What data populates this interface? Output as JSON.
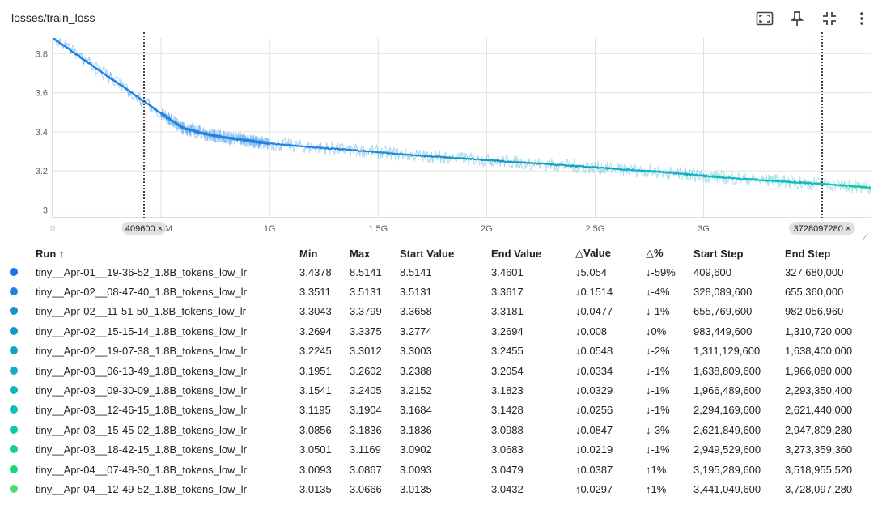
{
  "header": {
    "title": "losses/train_loss",
    "icons": [
      "fit-screen-icon",
      "pin-icon",
      "collapse-icon",
      "more-vert-icon"
    ]
  },
  "chart_data": {
    "type": "line",
    "title": "losses/train_loss",
    "xlabel": "",
    "ylabel": "",
    "x_ticks": [
      {
        "value": 0,
        "label": "0"
      },
      {
        "value": 500000000,
        "label": "500M"
      },
      {
        "value": 1000000000,
        "label": "1G"
      },
      {
        "value": 1500000000,
        "label": "1.5G"
      },
      {
        "value": 2000000000,
        "label": "2G"
      },
      {
        "value": 2500000000,
        "label": "2.5G"
      },
      {
        "value": 3000000000,
        "label": "3G"
      },
      {
        "value": 3500000000,
        "label": "3.5G"
      }
    ],
    "y_ticks": [
      {
        "value": 3.0,
        "label": "3"
      },
      {
        "value": 3.2,
        "label": "3.2"
      },
      {
        "value": 3.4,
        "label": "3.4"
      },
      {
        "value": 3.6,
        "label": "3.6"
      },
      {
        "value": 3.8,
        "label": "3.8"
      }
    ],
    "xlim": [
      0,
      3770000000
    ],
    "ylim": [
      2.96,
      3.88
    ],
    "grid": true,
    "range_markers": [
      {
        "value": 409600,
        "label": "409600 ×"
      },
      {
        "value": 3728097280,
        "label": "3728097280 ×"
      }
    ],
    "smoothed_series": [
      {
        "name": "tiny__Apr-01__19-36-52_1.8B_tokens_low_lr",
        "color": "#1a73e8",
        "x": [
          409600,
          500000000,
          600000000,
          700000000,
          800000000,
          900000000,
          1000000000
        ],
        "y": [
          3.88,
          3.495,
          3.42,
          3.39,
          3.37,
          3.355,
          3.34
        ]
      },
      {
        "name": "tiny__Apr-02__08-47-40_1.8B_tokens_low_lr",
        "color": "#1c83e0",
        "x": [
          409600,
          500000000,
          600000000,
          700000000,
          800000000,
          900000000,
          1000000000,
          1200000000,
          1400000000
        ],
        "y": [
          3.88,
          3.495,
          3.42,
          3.39,
          3.37,
          3.355,
          3.34,
          3.32,
          3.305
        ]
      },
      {
        "name": "tiny__Apr-02__11-51-50_1.8B_tokens_low_lr",
        "color": "#1890cf",
        "x": [
          1400000000,
          1600000000,
          1800000000
        ],
        "y": [
          3.305,
          3.285,
          3.27
        ]
      },
      {
        "name": "tiny__Apr-02__15-15-14_1.8B_tokens_low_lr",
        "color": "#1597c2",
        "x": [
          1800000000,
          2000000000,
          2200000000
        ],
        "y": [
          3.27,
          3.255,
          3.24
        ]
      },
      {
        "name": "tiny__Apr-02__19-07-38_1.8B_tokens_low_lr",
        "color": "#14a2c4",
        "x": [
          2200000000,
          2400000000,
          2600000000
        ],
        "y": [
          3.24,
          3.225,
          3.21
        ]
      },
      {
        "name": "tiny__Apr-03__06-13-49_1.8B_tokens_low_lr",
        "color": "#11abc8",
        "x": [
          2600000000,
          2800000000,
          2950000000
        ],
        "y": [
          3.21,
          3.195,
          3.18
        ]
      },
      {
        "name": "tiny__Apr-03__09-30-09_1.8B_tokens_low_lr",
        "color": "#10b5c3",
        "x": [
          2950000000,
          3100000000,
          3300000000
        ],
        "y": [
          3.18,
          3.165,
          3.15
        ]
      },
      {
        "name": "tiny__Apr-03__12-46-15_1.8B_tokens_low_lr",
        "color": "#0fbdb8",
        "x": [
          3300000000,
          3450000000,
          3650000000
        ],
        "y": [
          3.15,
          3.14,
          3.125
        ]
      },
      {
        "name": "tiny__Apr-03__15-45-02_1.8B_tokens_low_lr",
        "color": "#0ec7a8",
        "x": [
          3650000000,
          3800000000,
          3950000000
        ],
        "y": [
          3.125,
          3.11,
          3.1
        ]
      },
      {
        "name": "tiny__Apr-03__18-42-15_1.8B_tokens_low_lr",
        "color": "#12cf92",
        "x": [
          3950000000,
          4150000000
        ],
        "y": [
          3.1,
          3.085
        ]
      },
      {
        "name": "tiny__Apr-04__07-48-30_1.8B_tokens_low_lr",
        "color": "#16d67c",
        "x": [
          4150000000,
          4350000000
        ],
        "y": [
          3.085,
          3.08
        ]
      },
      {
        "name": "tiny__Apr-04__12-49-52_1.8B_tokens_low_lr",
        "color": "#4fdc6e",
        "x": [
          4350000000,
          4560000000
        ],
        "y": [
          3.08,
          3.07
        ]
      }
    ]
  },
  "table": {
    "columns": [
      "Run ↑",
      "Min",
      "Max",
      "Start Value",
      "End Value",
      "△Value",
      "△%",
      "Start Step",
      "End Step"
    ],
    "rows": [
      {
        "color": "#1a73e8",
        "run": "tiny__Apr-01__19-36-52_1.8B_tokens_low_lr",
        "min": "3.4378",
        "max": "8.5141",
        "start_value": "8.5141",
        "end_value": "3.4601",
        "delta_value": "↓5.054",
        "delta_pct": "↓-59%",
        "start_step": "409,600",
        "end_step": "327,680,000"
      },
      {
        "color": "#1c83e0",
        "run": "tiny__Apr-02__08-47-40_1.8B_tokens_low_lr",
        "min": "3.3511",
        "max": "3.5131",
        "start_value": "3.5131",
        "end_value": "3.3617",
        "delta_value": "↓0.1514",
        "delta_pct": "↓-4%",
        "start_step": "328,089,600",
        "end_step": "655,360,000"
      },
      {
        "color": "#1890cf",
        "run": "tiny__Apr-02__11-51-50_1.8B_tokens_low_lr",
        "min": "3.3043",
        "max": "3.3799",
        "start_value": "3.3658",
        "end_value": "3.3181",
        "delta_value": "↓0.0477",
        "delta_pct": "↓-1%",
        "start_step": "655,769,600",
        "end_step": "982,056,960"
      },
      {
        "color": "#1597c2",
        "run": "tiny__Apr-02__15-15-14_1.8B_tokens_low_lr",
        "min": "3.2694",
        "max": "3.3375",
        "start_value": "3.2774",
        "end_value": "3.2694",
        "delta_value": "↓0.008",
        "delta_pct": "↓0%",
        "start_step": "983,449,600",
        "end_step": "1,310,720,000"
      },
      {
        "color": "#14a2c4",
        "run": "tiny__Apr-02__19-07-38_1.8B_tokens_low_lr",
        "min": "3.2245",
        "max": "3.3012",
        "start_value": "3.3003",
        "end_value": "3.2455",
        "delta_value": "↓0.0548",
        "delta_pct": "↓-2%",
        "start_step": "1,311,129,600",
        "end_step": "1,638,400,000"
      },
      {
        "color": "#11abc8",
        "run": "tiny__Apr-03__06-13-49_1.8B_tokens_low_lr",
        "min": "3.1951",
        "max": "3.2602",
        "start_value": "3.2388",
        "end_value": "3.2054",
        "delta_value": "↓0.0334",
        "delta_pct": "↓-1%",
        "start_step": "1,638,809,600",
        "end_step": "1,966,080,000"
      },
      {
        "color": "#10b5c3",
        "run": "tiny__Apr-03__09-30-09_1.8B_tokens_low_lr",
        "min": "3.1541",
        "max": "3.2405",
        "start_value": "3.2152",
        "end_value": "3.1823",
        "delta_value": "↓0.0329",
        "delta_pct": "↓-1%",
        "start_step": "1,966,489,600",
        "end_step": "2,293,350,400"
      },
      {
        "color": "#0fbdb8",
        "run": "tiny__Apr-03__12-46-15_1.8B_tokens_low_lr",
        "min": "3.1195",
        "max": "3.1904",
        "start_value": "3.1684",
        "end_value": "3.1428",
        "delta_value": "↓0.0256",
        "delta_pct": "↓-1%",
        "start_step": "2,294,169,600",
        "end_step": "2,621,440,000"
      },
      {
        "color": "#0ec7a8",
        "run": "tiny__Apr-03__15-45-02_1.8B_tokens_low_lr",
        "min": "3.0856",
        "max": "3.1836",
        "start_value": "3.1836",
        "end_value": "3.0988",
        "delta_value": "↓0.0847",
        "delta_pct": "↓-3%",
        "start_step": "2,621,849,600",
        "end_step": "2,947,809,280"
      },
      {
        "color": "#12cf92",
        "run": "tiny__Apr-03__18-42-15_1.8B_tokens_low_lr",
        "min": "3.0501",
        "max": "3.1169",
        "start_value": "3.0902",
        "end_value": "3.0683",
        "delta_value": "↓0.0219",
        "delta_pct": "↓-1%",
        "start_step": "2,949,529,600",
        "end_step": "3,273,359,360"
      },
      {
        "color": "#16d67c",
        "run": "tiny__Apr-04__07-48-30_1.8B_tokens_low_lr",
        "min": "3.0093",
        "max": "3.0867",
        "start_value": "3.0093",
        "end_value": "3.0479",
        "delta_value": "↑0.0387",
        "delta_pct": "↑1%",
        "start_step": "3,195,289,600",
        "end_step": "3,518,955,520"
      },
      {
        "color": "#4fdc6e",
        "run": "tiny__Apr-04__12-49-52_1.8B_tokens_low_lr",
        "min": "3.0135",
        "max": "3.0666",
        "start_value": "3.0135",
        "end_value": "3.0432",
        "delta_value": "↑0.0297",
        "delta_pct": "↑1%",
        "start_step": "3,441,049,600",
        "end_step": "3,728,097,280"
      }
    ]
  }
}
